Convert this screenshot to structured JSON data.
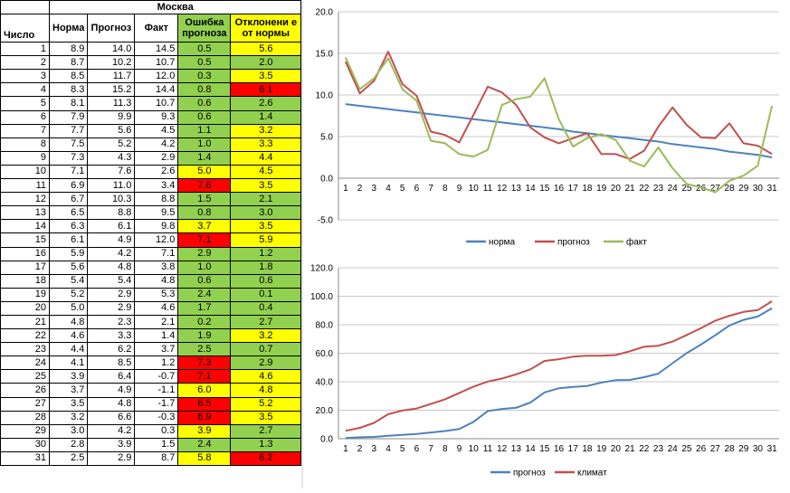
{
  "table": {
    "city": "Москва",
    "headers": {
      "day": "Число",
      "norm": "Норма",
      "forecast": "Прогноз",
      "fact": "Факт",
      "error": "Ошибка прогноза",
      "deviation": "Отклонени е от нормы"
    },
    "colors": {
      "green": "#92d050",
      "yellow": "#ffff00",
      "red": "#ff0000"
    },
    "rows": [
      {
        "day": "1",
        "norm": "8.9",
        "forecast": "14.0",
        "fact": "14.5",
        "error": "0.5",
        "error_color": "green",
        "dev": "5.6",
        "dev_color": "yellow"
      },
      {
        "day": "2",
        "norm": "8.7",
        "forecast": "10.2",
        "fact": "10.7",
        "error": "0.5",
        "error_color": "green",
        "dev": "2.0",
        "dev_color": "green"
      },
      {
        "day": "3",
        "norm": "8.5",
        "forecast": "11.7",
        "fact": "12.0",
        "error": "0.3",
        "error_color": "green",
        "dev": "3.5",
        "dev_color": "yellow"
      },
      {
        "day": "4",
        "norm": "8.3",
        "forecast": "15.2",
        "fact": "14.4",
        "error": "0.8",
        "error_color": "green",
        "dev": "6.1",
        "dev_color": "red"
      },
      {
        "day": "5",
        "norm": "8.1",
        "forecast": "11.3",
        "fact": "10.7",
        "error": "0.6",
        "error_color": "green",
        "dev": "2.6",
        "dev_color": "green"
      },
      {
        "day": "6",
        "norm": "7.9",
        "forecast": "9.9",
        "fact": "9.3",
        "error": "0.6",
        "error_color": "green",
        "dev": "1.4",
        "dev_color": "green"
      },
      {
        "day": "7",
        "norm": "7.7",
        "forecast": "5.6",
        "fact": "4.5",
        "error": "1.1",
        "error_color": "green",
        "dev": "3.2",
        "dev_color": "yellow"
      },
      {
        "day": "8",
        "norm": "7.5",
        "forecast": "5.2",
        "fact": "4.2",
        "error": "1.0",
        "error_color": "green",
        "dev": "3.3",
        "dev_color": "yellow"
      },
      {
        "day": "9",
        "norm": "7.3",
        "forecast": "4.3",
        "fact": "2.9",
        "error": "1.4",
        "error_color": "green",
        "dev": "4.4",
        "dev_color": "yellow"
      },
      {
        "day": "10",
        "norm": "7.1",
        "forecast": "7.6",
        "fact": "2.6",
        "error": "5.0",
        "error_color": "yellow",
        "dev": "4.5",
        "dev_color": "yellow"
      },
      {
        "day": "11",
        "norm": "6.9",
        "forecast": "11.0",
        "fact": "3.4",
        "error": "7.6",
        "error_color": "red",
        "dev": "3.5",
        "dev_color": "yellow"
      },
      {
        "day": "12",
        "norm": "6.7",
        "forecast": "10.3",
        "fact": "8.8",
        "error": "1.5",
        "error_color": "green",
        "dev": "2.1",
        "dev_color": "green"
      },
      {
        "day": "13",
        "norm": "6.5",
        "forecast": "8.8",
        "fact": "9.5",
        "error": "0.8",
        "error_color": "green",
        "dev": "3.0",
        "dev_color": "green"
      },
      {
        "day": "14",
        "norm": "6.3",
        "forecast": "6.1",
        "fact": "9.8",
        "error": "3.7",
        "error_color": "yellow",
        "dev": "3.5",
        "dev_color": "yellow"
      },
      {
        "day": "15",
        "norm": "6.1",
        "forecast": "4.9",
        "fact": "12.0",
        "error": "7.1",
        "error_color": "red",
        "dev": "5.9",
        "dev_color": "yellow"
      },
      {
        "day": "16",
        "norm": "5.9",
        "forecast": "4.2",
        "fact": "7.1",
        "error": "2.9",
        "error_color": "green",
        "dev": "1.2",
        "dev_color": "green"
      },
      {
        "day": "17",
        "norm": "5.6",
        "forecast": "4.8",
        "fact": "3.8",
        "error": "1.0",
        "error_color": "green",
        "dev": "1.8",
        "dev_color": "green"
      },
      {
        "day": "18",
        "norm": "5.4",
        "forecast": "5.4",
        "fact": "4.8",
        "error": "0.6",
        "error_color": "green",
        "dev": "0.6",
        "dev_color": "green"
      },
      {
        "day": "19",
        "norm": "5.2",
        "forecast": "2.9",
        "fact": "5.3",
        "error": "2.4",
        "error_color": "green",
        "dev": "0.1",
        "dev_color": "green"
      },
      {
        "day": "20",
        "norm": "5.0",
        "forecast": "2.9",
        "fact": "4.6",
        "error": "1.7",
        "error_color": "green",
        "dev": "0.4",
        "dev_color": "green"
      },
      {
        "day": "21",
        "norm": "4.8",
        "forecast": "2.3",
        "fact": "2.1",
        "error": "0.2",
        "error_color": "green",
        "dev": "2.7",
        "dev_color": "green"
      },
      {
        "day": "22",
        "norm": "4.6",
        "forecast": "3.3",
        "fact": "1.4",
        "error": "1.9",
        "error_color": "green",
        "dev": "3.2",
        "dev_color": "yellow"
      },
      {
        "day": "23",
        "norm": "4.4",
        "forecast": "6.2",
        "fact": "3.7",
        "error": "2.5",
        "error_color": "green",
        "dev": "0.7",
        "dev_color": "green"
      },
      {
        "day": "24",
        "norm": "4.1",
        "forecast": "8.5",
        "fact": "1.2",
        "error": "7.3",
        "error_color": "red",
        "dev": "2.9",
        "dev_color": "green"
      },
      {
        "day": "25",
        "norm": "3.9",
        "forecast": "6.4",
        "fact": "-0.7",
        "error": "7.1",
        "error_color": "red",
        "dev": "4.6",
        "dev_color": "yellow"
      },
      {
        "day": "26",
        "norm": "3.7",
        "forecast": "4.9",
        "fact": "-1.1",
        "error": "6.0",
        "error_color": "yellow",
        "dev": "4.8",
        "dev_color": "yellow"
      },
      {
        "day": "27",
        "norm": "3.5",
        "forecast": "4.8",
        "fact": "-1.7",
        "error": "6.5",
        "error_color": "red",
        "dev": "5.2",
        "dev_color": "yellow"
      },
      {
        "day": "28",
        "norm": "3.2",
        "forecast": "6.6",
        "fact": "-0.3",
        "error": "6.9",
        "error_color": "red",
        "dev": "3.5",
        "dev_color": "yellow"
      },
      {
        "day": "29",
        "norm": "3.0",
        "forecast": "4.2",
        "fact": "0.3",
        "error": "3.9",
        "error_color": "yellow",
        "dev": "2.7",
        "dev_color": "green"
      },
      {
        "day": "30",
        "norm": "2.8",
        "forecast": "3.9",
        "fact": "1.5",
        "error": "2.4",
        "error_color": "green",
        "dev": "1.3",
        "dev_color": "green"
      },
      {
        "day": "31",
        "norm": "2.5",
        "forecast": "2.9",
        "fact": "8.7",
        "error": "5.8",
        "error_color": "yellow",
        "dev": "6.2",
        "dev_color": "red"
      }
    ]
  },
  "chart_data": [
    {
      "type": "line",
      "x": [
        1,
        2,
        3,
        4,
        5,
        6,
        7,
        8,
        9,
        10,
        11,
        12,
        13,
        14,
        15,
        16,
        17,
        18,
        19,
        20,
        21,
        22,
        23,
        24,
        25,
        26,
        27,
        28,
        29,
        30,
        31
      ],
      "ylim": [
        -5,
        20
      ],
      "yticks": [
        "-5.0",
        "0.0",
        "5.0",
        "10.0",
        "15.0",
        "20.0"
      ],
      "grid": true,
      "legend_position": "bottom",
      "series": [
        {
          "name": "норма",
          "color": "#4f81bd",
          "values": [
            8.9,
            8.7,
            8.5,
            8.3,
            8.1,
            7.9,
            7.7,
            7.5,
            7.3,
            7.1,
            6.9,
            6.7,
            6.5,
            6.3,
            6.1,
            5.9,
            5.6,
            5.4,
            5.2,
            5.0,
            4.8,
            4.6,
            4.4,
            4.1,
            3.9,
            3.7,
            3.5,
            3.2,
            3.0,
            2.8,
            2.5
          ]
        },
        {
          "name": "прогноз",
          "color": "#c0504d",
          "values": [
            14.0,
            10.2,
            11.7,
            15.2,
            11.3,
            9.9,
            5.6,
            5.2,
            4.3,
            7.6,
            11.0,
            10.3,
            8.8,
            6.1,
            4.9,
            4.2,
            4.8,
            5.4,
            2.9,
            2.9,
            2.3,
            3.3,
            6.2,
            8.5,
            6.4,
            4.9,
            4.8,
            6.6,
            4.2,
            3.9,
            2.9
          ]
        },
        {
          "name": "факт",
          "color": "#9bbb59",
          "values": [
            14.5,
            10.7,
            12.0,
            14.4,
            10.7,
            9.3,
            4.5,
            4.2,
            2.9,
            2.6,
            3.4,
            8.8,
            9.5,
            9.8,
            12.0,
            7.1,
            3.8,
            4.8,
            5.3,
            4.6,
            2.1,
            1.4,
            3.7,
            1.2,
            -0.7,
            -1.1,
            -1.7,
            -0.3,
            0.3,
            1.5,
            8.7
          ]
        }
      ]
    },
    {
      "type": "line",
      "x": [
        1,
        2,
        3,
        4,
        5,
        6,
        7,
        8,
        9,
        10,
        11,
        12,
        13,
        14,
        15,
        16,
        17,
        18,
        19,
        20,
        21,
        22,
        23,
        24,
        25,
        26,
        27,
        28,
        29,
        30,
        31
      ],
      "ylim": [
        0,
        120
      ],
      "yticks": [
        "0.0",
        "20.0",
        "40.0",
        "60.0",
        "80.0",
        "100.0",
        "120.0"
      ],
      "grid": true,
      "legend_position": "bottom",
      "series": [
        {
          "name": "прогноз",
          "color": "#4f81bd",
          "values": [
            0.5,
            1.0,
            1.3,
            2.1,
            2.7,
            3.3,
            4.4,
            5.4,
            6.8,
            11.8,
            19.4,
            20.9,
            21.7,
            25.4,
            32.5,
            35.4,
            36.4,
            37.0,
            39.4,
            41.1,
            41.3,
            43.2,
            45.7,
            53.0,
            60.1,
            66.1,
            72.6,
            79.5,
            83.4,
            85.8,
            91.6
          ]
        },
        {
          "name": "климат",
          "color": "#c0504d",
          "values": [
            5.6,
            7.6,
            11.1,
            17.2,
            19.8,
            21.2,
            24.4,
            27.7,
            32.1,
            36.6,
            40.1,
            42.2,
            45.2,
            48.7,
            54.6,
            55.8,
            57.6,
            58.2,
            58.3,
            58.7,
            61.4,
            64.6,
            65.3,
            68.2,
            72.8,
            77.6,
            82.8,
            86.3,
            89.0,
            90.3,
            96.5
          ]
        }
      ]
    }
  ]
}
